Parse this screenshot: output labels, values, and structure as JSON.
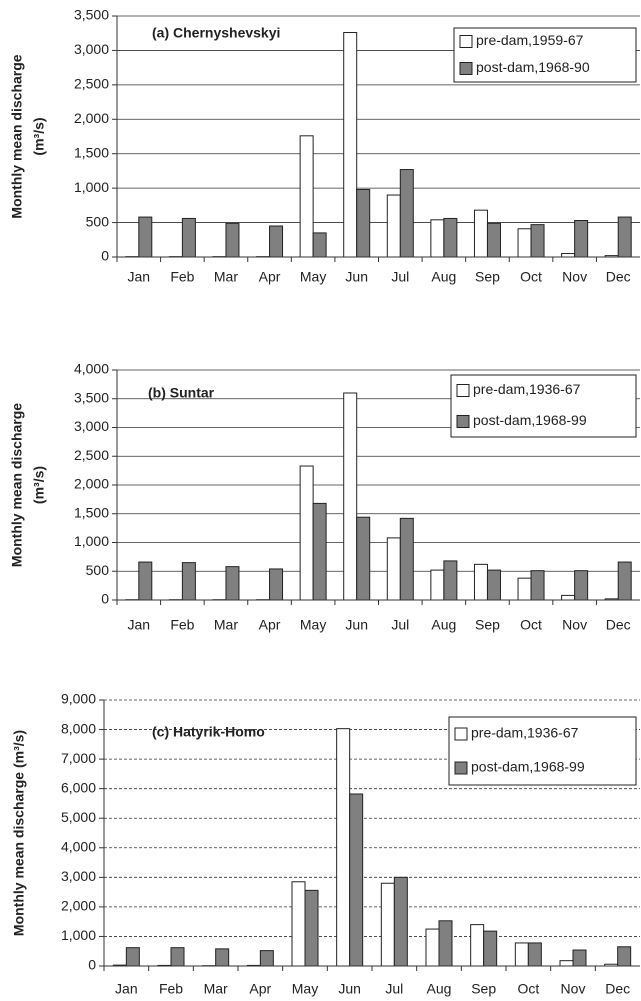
{
  "chart_data": [
    {
      "type": "bar",
      "panel_label": "(a) Chernyshevskyi",
      "y_label": [
        "Monthly mean discharge",
        "(m³/s)"
      ],
      "categories": [
        "Jan",
        "Feb",
        "Mar",
        "Apr",
        "May",
        "Jun",
        "Jul",
        "Aug",
        "Sep",
        "Oct",
        "Nov",
        "Dec"
      ],
      "series": [
        {
          "name": "pre-dam,1959-67",
          "color": "#ffffff",
          "values": [
            5,
            5,
            5,
            5,
            1760,
            3260,
            900,
            540,
            680,
            410,
            50,
            20
          ]
        },
        {
          "name": "post-dam,1968-90",
          "color": "#808080",
          "values": [
            580,
            560,
            490,
            450,
            350,
            980,
            1270,
            560,
            490,
            470,
            530,
            580
          ]
        }
      ],
      "ylim": [
        0,
        3500
      ],
      "yticks": [
        0,
        500,
        {
          "value": 1000,
          "label": "1,000"
        },
        {
          "value": 1500,
          "label": "1,500"
        },
        {
          "value": 2000,
          "label": "2,000"
        },
        {
          "value": 2500,
          "label": "2,500"
        },
        {
          "value": 3000,
          "label": "3,000"
        },
        {
          "value": 3500,
          "label": "3,500"
        }
      ],
      "grid": true,
      "grid_style": "solid",
      "legend": "upper right"
    },
    {
      "type": "bar",
      "panel_label": "(b) Suntar",
      "y_label": [
        "Monthly mean discharge",
        "(m³/s)"
      ],
      "categories": [
        "Jan",
        "Feb",
        "Mar",
        "Apr",
        "May",
        "Jun",
        "Jul",
        "Aug",
        "Sep",
        "Oct",
        "Nov",
        "Dec"
      ],
      "series": [
        {
          "name": "pre-dam,1936-67",
          "color": "#ffffff",
          "values": [
            5,
            5,
            5,
            5,
            2330,
            3600,
            1080,
            520,
            620,
            380,
            80,
            20
          ]
        },
        {
          "name": "post-dam,1968-99",
          "color": "#808080",
          "values": [
            660,
            650,
            580,
            540,
            1680,
            1440,
            1420,
            680,
            520,
            510,
            510,
            660
          ]
        }
      ],
      "ylim": [
        0,
        4000
      ],
      "yticks": [
        0,
        500,
        {
          "value": 1000,
          "label": "1,000"
        },
        {
          "value": 1500,
          "label": "1,500"
        },
        {
          "value": 2000,
          "label": "2,000"
        },
        {
          "value": 2500,
          "label": "2,500"
        },
        {
          "value": 3000,
          "label": "3,000"
        },
        {
          "value": 3500,
          "label": "3,500"
        },
        {
          "value": 4000,
          "label": "4,000"
        }
      ],
      "grid": true,
      "grid_style": "solid",
      "legend": "upper right"
    },
    {
      "type": "bar",
      "panel_label": "(c) Hatyrik-Homo",
      "y_label": [
        "Monthly mean discharge (m³/s)"
      ],
      "categories": [
        "Jan",
        "Feb",
        "Mar",
        "Apr",
        "May",
        "Jun",
        "Jul",
        "Aug",
        "Sep",
        "Oct",
        "Nov",
        "Dec"
      ],
      "series": [
        {
          "name": "pre-dam,1936-67",
          "color": "#ffffff",
          "values": [
            30,
            20,
            10,
            20,
            2850,
            8030,
            2800,
            1250,
            1400,
            780,
            180,
            60
          ]
        },
        {
          "name": "post-dam,1968-99",
          "color": "#808080",
          "values": [
            620,
            620,
            580,
            520,
            2560,
            5820,
            3000,
            1530,
            1180,
            780,
            540,
            650
          ]
        }
      ],
      "ylim": [
        0,
        9000
      ],
      "yticks": [
        0,
        {
          "value": 1000,
          "label": "1,000"
        },
        {
          "value": 2000,
          "label": "2,000"
        },
        {
          "value": 3000,
          "label": "3,000"
        },
        {
          "value": 4000,
          "label": "4,000"
        },
        {
          "value": 5000,
          "label": "5,000"
        },
        {
          "value": 6000,
          "label": "6,000"
        },
        {
          "value": 7000,
          "label": "7,000"
        },
        {
          "value": 8000,
          "label": "8,000"
        },
        {
          "value": 9000,
          "label": "9,000"
        }
      ],
      "grid": true,
      "grid_style": "dashed",
      "legend": "upper right"
    }
  ]
}
